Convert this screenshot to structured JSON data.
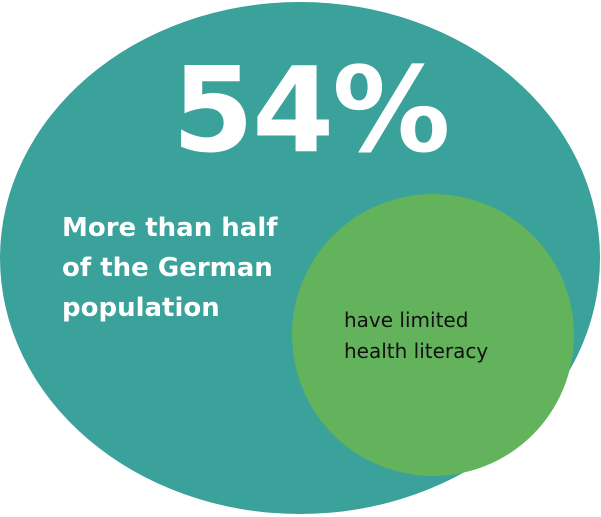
{
  "stat": "54%",
  "headline_lines": [
    "More than half",
    "of the German",
    "population"
  ],
  "subtext_lines": [
    "have limited",
    "health literacy"
  ],
  "colors": {
    "outer_circle": "#3aa19b",
    "inner_circle": "#63b25c",
    "headline_text": "#ffffff",
    "subtext_text": "#111111",
    "background": "#ffffff"
  }
}
